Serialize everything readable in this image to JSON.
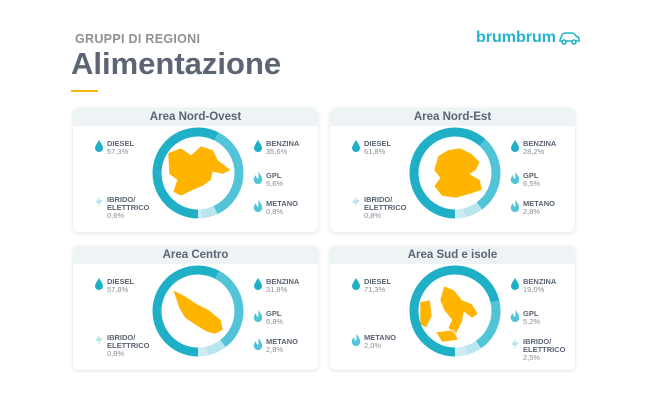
{
  "header": {
    "supertitle": "GRUPPI DI REGIONI",
    "title": "Alimentazione",
    "logo": "brumbrum"
  },
  "colors": {
    "diesel": "#1fb0c8",
    "benzina": "#52c4d7",
    "minor": "#b9e6ee",
    "map": "#ffb400",
    "accent": "#f5b800"
  },
  "chart_data": [
    {
      "type": "pie",
      "title": "Area Nord-Ovest",
      "categories": [
        "DIESEL",
        "BENZINA",
        "GPL",
        "METANO",
        "IBRIDO/ ELETTRICO"
      ],
      "values": [
        57.3,
        35.6,
        5.6,
        0.8,
        0.6
      ],
      "labels": [
        "57,3%",
        "35,6%",
        "5,6%",
        "0,8%",
        "0,6%"
      ],
      "layout": {
        "left": [
          "DIESEL",
          "IBRIDO/ ELETTRICO"
        ],
        "right": [
          "BENZINA",
          "GPL",
          "METANO"
        ]
      }
    },
    {
      "type": "pie",
      "title": "Area Nord-Est",
      "categories": [
        "DIESEL",
        "BENZINA",
        "GPL",
        "METANO",
        "IBRIDO/ ELETTRICO"
      ],
      "values": [
        61.8,
        28.2,
        6.5,
        2.8,
        0.8
      ],
      "labels": [
        "61,8%",
        "28,2%",
        "6,5%",
        "2,8%",
        "0,8%"
      ],
      "layout": {
        "left": [
          "DIESEL",
          "IBRIDO/ ELETTRICO"
        ],
        "right": [
          "BENZINA",
          "GPL",
          "METANO"
        ]
      }
    },
    {
      "type": "pie",
      "title": "Area Centro",
      "categories": [
        "DIESEL",
        "BENZINA",
        "GPL",
        "METANO",
        "IBRIDO/ ELETTRICO"
      ],
      "values": [
        57.8,
        31.8,
        6.8,
        2.8,
        0.8
      ],
      "labels": [
        "57,8%",
        "31,8%",
        "6,8%",
        "2,8%",
        "0,8%"
      ],
      "layout": {
        "left": [
          "DIESEL",
          "IBRIDO/ ELETTRICO"
        ],
        "right": [
          "BENZINA",
          "GPL",
          "METANO"
        ]
      }
    },
    {
      "type": "pie",
      "title": "Area Sud e isole",
      "categories": [
        "DIESEL",
        "BENZINA",
        "GPL",
        "IBRIDO/ ELETTRICO",
        "METANO"
      ],
      "values": [
        71.3,
        19.0,
        5.2,
        2.5,
        2.0
      ],
      "labels": [
        "71,3%",
        "19,0%",
        "5,2%",
        "2,5%",
        "2,0%"
      ],
      "layout": {
        "left": [
          "DIESEL",
          "METANO"
        ],
        "right": [
          "BENZINA",
          "GPL",
          "IBRIDO/ ELETTRICO"
        ]
      }
    }
  ],
  "icons": {
    "DIESEL": "drop-icon",
    "BENZINA": "drop-icon",
    "GPL": "flame-icon",
    "METANO": "flame-icon",
    "IBRIDO/ ELETTRICO": "bolt-icon"
  }
}
